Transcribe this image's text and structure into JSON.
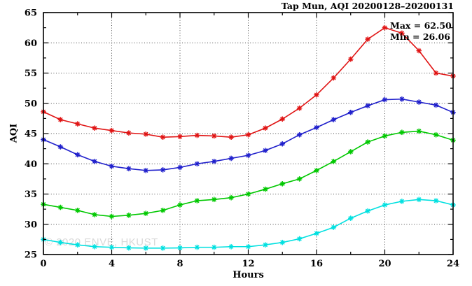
{
  "title": "Tap Mun, AQI 20200128–20200131",
  "annotation": {
    "max_label": "Max = 62.50",
    "min_label": "Min = 26.06"
  },
  "watermark": "© 2020 ENVE, HKUST",
  "colors": {
    "series1": "#e01414",
    "series2": "#2020cc",
    "series3": "#00c800",
    "series4": "#00e0e0",
    "grid": "#4a4a4a",
    "axis": "#000000",
    "watermark": "#d9d9d9"
  },
  "chart_data": {
    "type": "line",
    "title": "Tap Mun, AQI 20200128–20200131",
    "xlabel": "Hours",
    "ylabel": "AQI",
    "xlim": [
      0,
      24
    ],
    "ylim": [
      25,
      65
    ],
    "x_major_ticks": [
      0,
      4,
      8,
      12,
      16,
      20,
      24
    ],
    "x_minor_step": 2,
    "y_major_ticks": [
      25,
      30,
      35,
      40,
      45,
      50,
      55,
      60,
      65
    ],
    "y_minor_step": 2.5,
    "grid": "dotted lines at major ticks, mirrored inward axis ticks on all four sides",
    "legend": "none",
    "marker": "asterisk",
    "max": 62.5,
    "min": 26.06,
    "x": [
      0,
      1,
      2,
      3,
      4,
      5,
      6,
      7,
      8,
      9,
      10,
      11,
      12,
      13,
      14,
      15,
      16,
      17,
      18,
      19,
      20,
      21,
      22,
      23,
      24
    ],
    "series": [
      {
        "name": "series-red",
        "color": "#e01414",
        "values": [
          48.6,
          47.3,
          46.6,
          45.9,
          45.5,
          45.1,
          44.9,
          44.4,
          44.5,
          44.7,
          44.6,
          44.4,
          44.8,
          45.9,
          47.4,
          49.2,
          51.4,
          54.2,
          57.3,
          60.6,
          62.5,
          61.6,
          58.7,
          55.0,
          54.5
        ]
      },
      {
        "name": "series-blue",
        "color": "#2020cc",
        "values": [
          44.0,
          42.8,
          41.5,
          40.4,
          39.6,
          39.2,
          38.9,
          39.0,
          39.4,
          40.0,
          40.4,
          40.9,
          41.4,
          42.2,
          43.3,
          44.8,
          46.0,
          47.3,
          48.5,
          49.6,
          50.6,
          50.7,
          50.2,
          49.7,
          48.5
        ]
      },
      {
        "name": "series-green",
        "color": "#00c800",
        "values": [
          33.3,
          32.8,
          32.3,
          31.6,
          31.3,
          31.5,
          31.8,
          32.3,
          33.2,
          33.9,
          34.1,
          34.4,
          35.0,
          35.8,
          36.7,
          37.5,
          38.9,
          40.4,
          42.0,
          43.6,
          44.6,
          45.2,
          45.4,
          44.8,
          43.9
        ]
      },
      {
        "name": "series-cyan",
        "color": "#00e0e0",
        "values": [
          27.5,
          27.0,
          26.6,
          26.3,
          26.2,
          26.1,
          26.06,
          26.06,
          26.1,
          26.2,
          26.2,
          26.3,
          26.3,
          26.6,
          27.0,
          27.6,
          28.5,
          29.5,
          31.0,
          32.2,
          33.2,
          33.8,
          34.1,
          33.9,
          33.2
        ]
      }
    ]
  }
}
